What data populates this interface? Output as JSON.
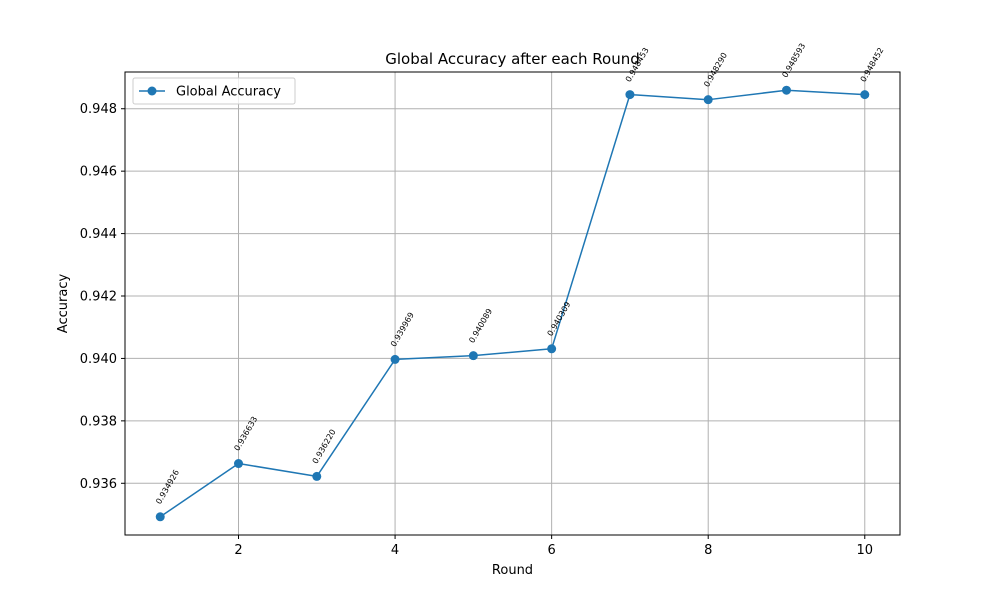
{
  "chart_data": {
    "type": "line",
    "title": "Global Accuracy after each Round",
    "xlabel": "Round",
    "ylabel": "Accuracy",
    "x": [
      1,
      2,
      3,
      4,
      5,
      6,
      7,
      8,
      9,
      10
    ],
    "series": [
      {
        "name": "Global Accuracy",
        "values": [
          0.934926,
          0.936633,
          0.93622,
          0.939969,
          0.940089,
          0.940309,
          0.948453,
          0.94829,
          0.948593,
          0.948452
        ],
        "labels": [
          "0.934926",
          "0.936633",
          "0.936220",
          "0.939969",
          "0.940089",
          "0.940309",
          "0.948453",
          "0.948290",
          "0.948593",
          "0.948452"
        ],
        "color": "#1f77b4",
        "marker": "circle"
      }
    ],
    "xticks": [
      2,
      4,
      6,
      8,
      10
    ],
    "xtick_labels": [
      "2",
      "4",
      "6",
      "8",
      "10"
    ],
    "yticks": [
      0.936,
      0.938,
      0.94,
      0.942,
      0.944,
      0.946,
      0.948
    ],
    "ytick_labels": [
      "0.936",
      "0.938",
      "0.940",
      "0.942",
      "0.944",
      "0.946",
      "0.948"
    ],
    "xlim": [
      0.55,
      10.45
    ],
    "ylim": [
      0.934343,
      0.949177
    ],
    "grid": true,
    "legend_position": "top-left"
  }
}
